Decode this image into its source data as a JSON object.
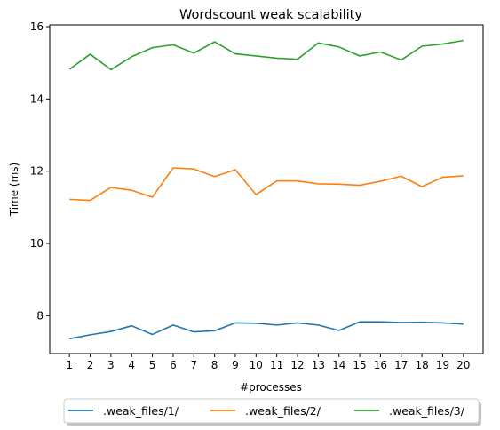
{
  "chart_data": {
    "type": "line",
    "title": "Wordscount weak scalability",
    "xlabel": "#processes",
    "ylabel": "Time (ms)",
    "x": [
      1,
      2,
      3,
      4,
      5,
      6,
      7,
      8,
      9,
      10,
      11,
      12,
      13,
      14,
      15,
      16,
      17,
      18,
      19,
      20
    ],
    "xlim": [
      0.05,
      20.95
    ],
    "ylim": [
      6.95,
      16.05
    ],
    "yticks": [
      8,
      10,
      12,
      14,
      16
    ],
    "grid": false,
    "legend_position": "bottom-center",
    "series": [
      {
        "name": ".weak_files/1/",
        "color": "#1f77b4",
        "values": [
          7.36,
          7.47,
          7.56,
          7.72,
          7.48,
          7.74,
          7.55,
          7.58,
          7.8,
          7.79,
          7.74,
          7.8,
          7.74,
          7.59,
          7.83,
          7.83,
          7.81,
          7.82,
          7.8,
          7.77
        ]
      },
      {
        "name": ".weak_files/2/",
        "color": "#ff7f0e",
        "values": [
          11.22,
          11.19,
          11.55,
          11.47,
          11.28,
          12.09,
          12.06,
          11.85,
          12.04,
          11.35,
          11.73,
          11.73,
          11.65,
          11.64,
          11.61,
          11.72,
          11.86,
          11.57,
          11.83,
          11.87
        ]
      },
      {
        "name": ".weak_files/3/",
        "color": "#2ca02c",
        "values": [
          14.82,
          15.24,
          14.81,
          15.17,
          15.42,
          15.5,
          15.27,
          15.58,
          15.25,
          15.19,
          15.13,
          15.1,
          15.55,
          15.44,
          15.19,
          15.3,
          15.08,
          15.46,
          15.52,
          15.62
        ]
      }
    ]
  }
}
